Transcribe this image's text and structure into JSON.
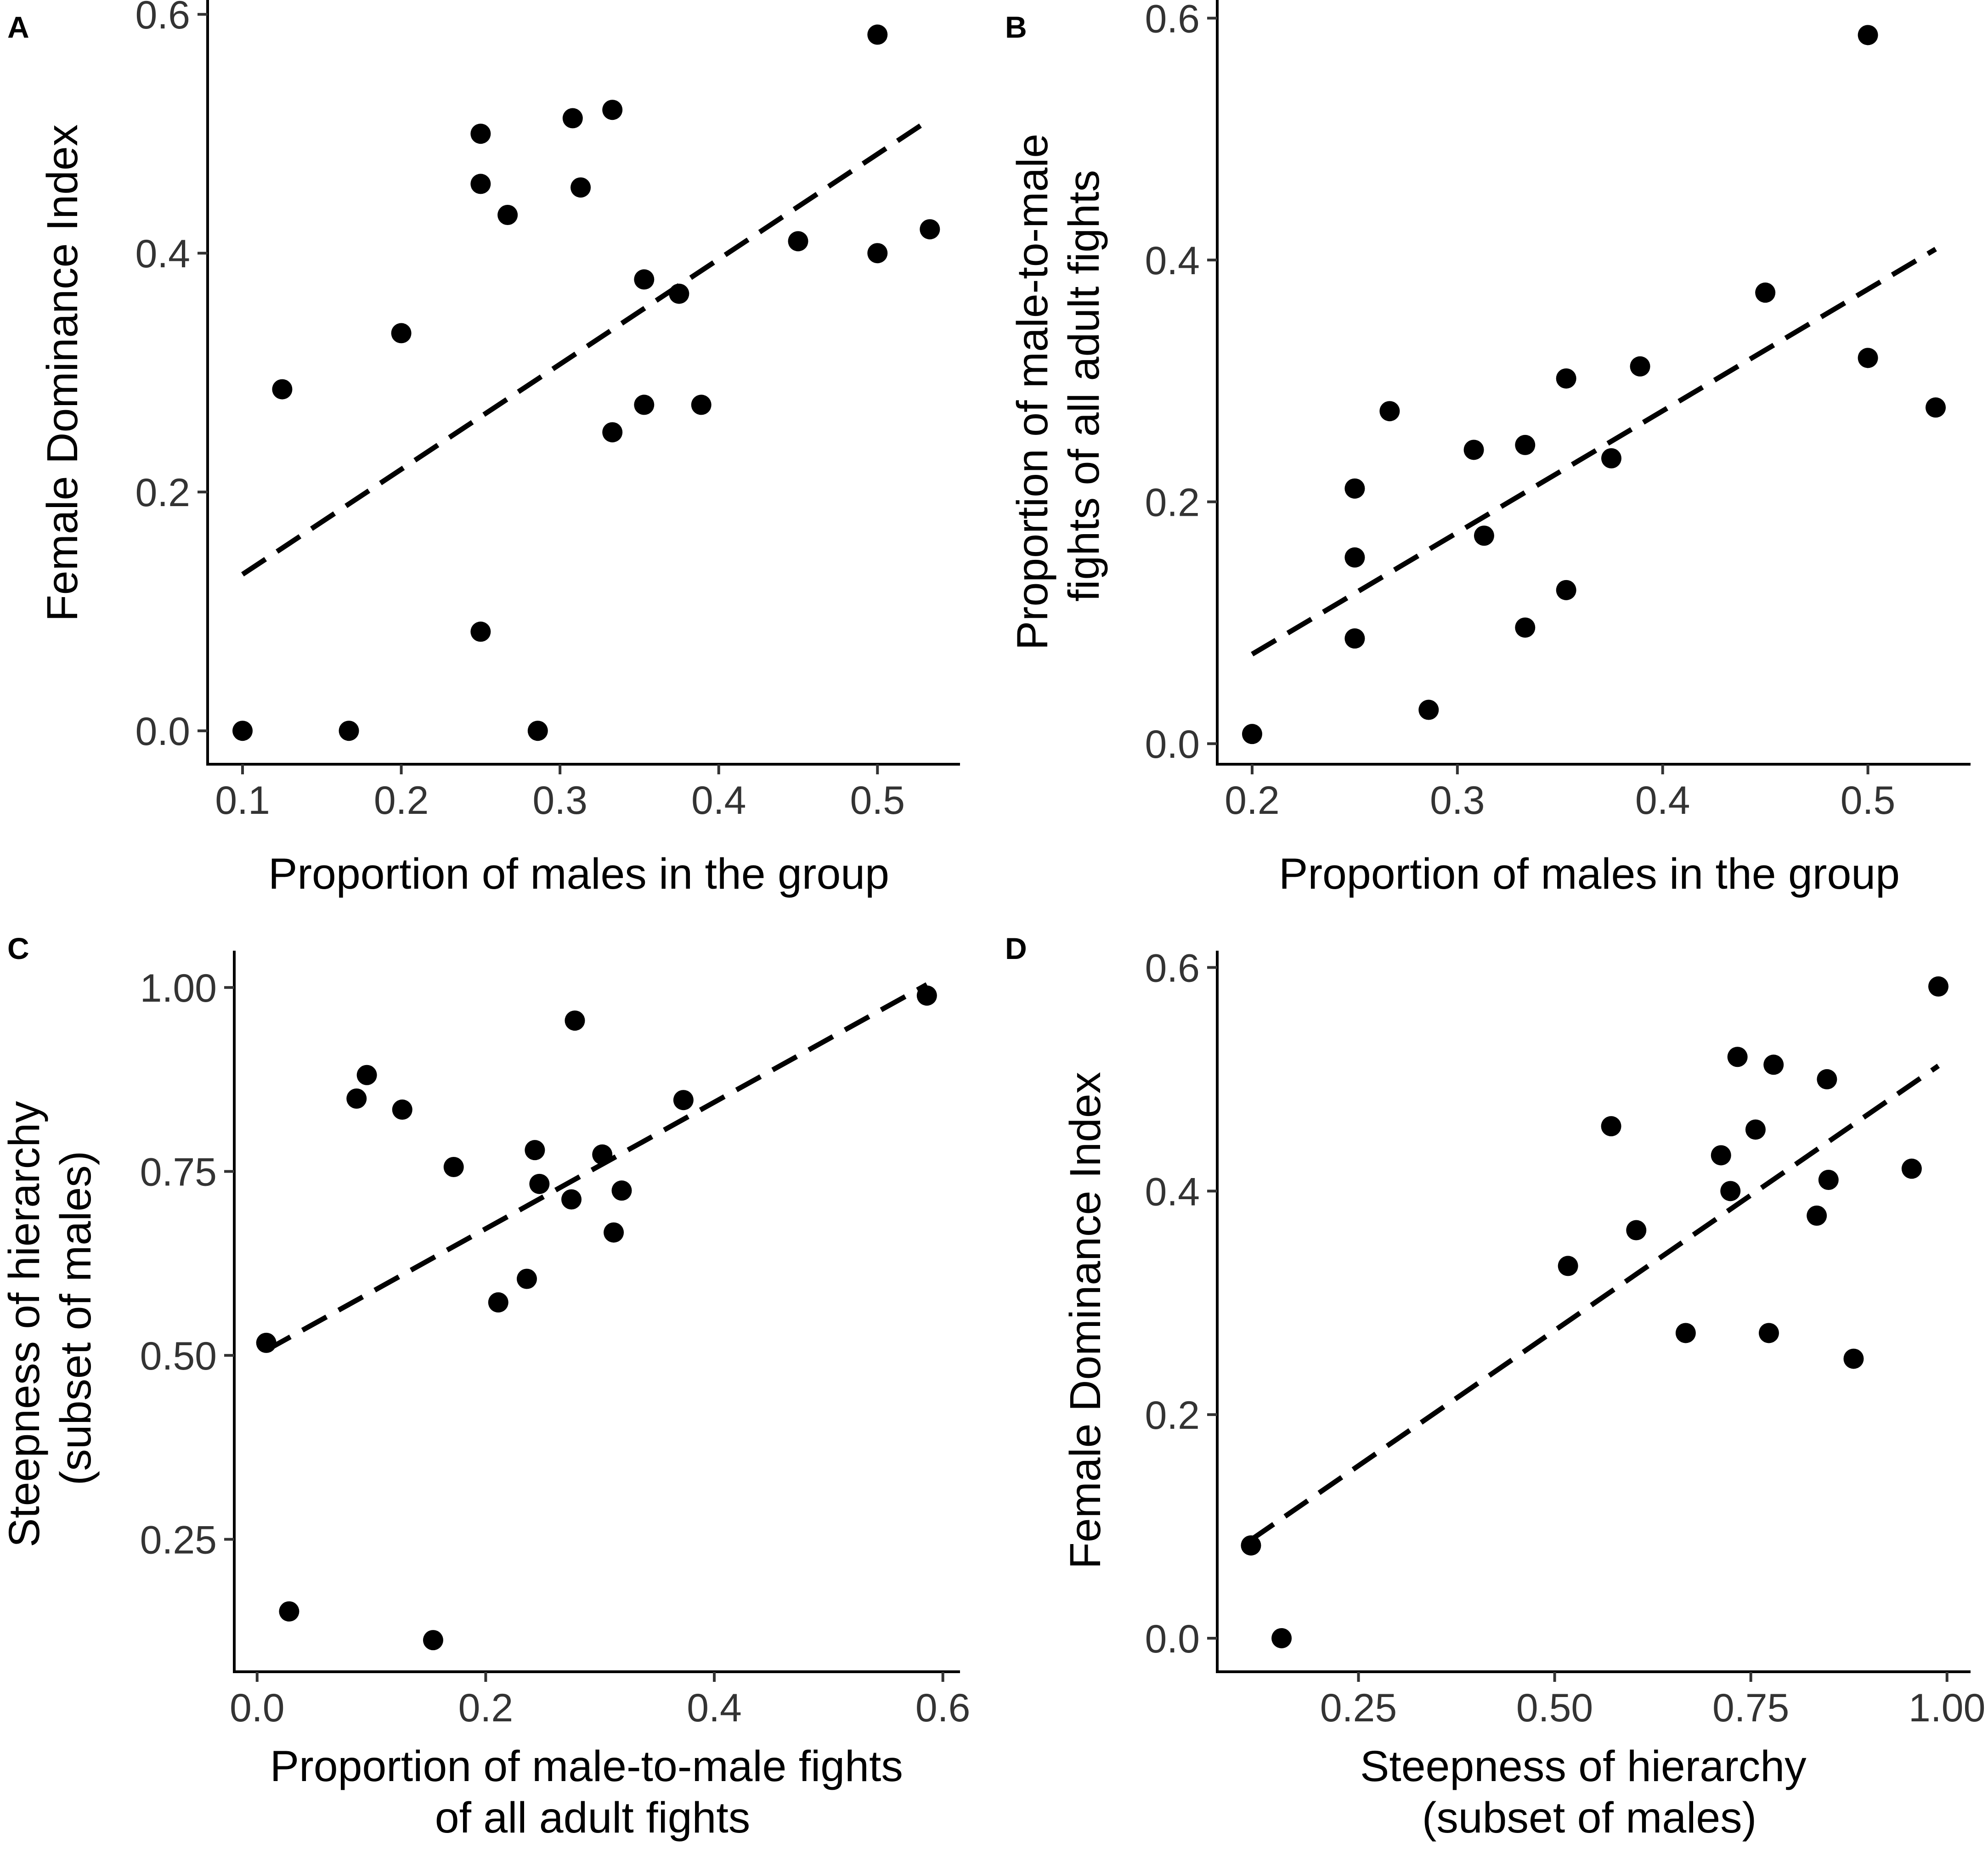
{
  "chart_data": [
    {
      "panel": "A",
      "type": "scatter",
      "xlabel": [
        "Proportion of males in the group"
      ],
      "ylabel": [
        "Female Dominance Index"
      ],
      "xlim": [
        0.078,
        0.552
      ],
      "ylim": [
        -0.028,
        0.612
      ],
      "x_ticks": [
        0.1,
        0.2,
        0.3,
        0.4,
        0.5
      ],
      "x_tick_labels": [
        "0.1",
        "0.2",
        "0.3",
        "0.4",
        "0.5"
      ],
      "y_ticks": [
        0.0,
        0.2,
        0.4,
        0.6
      ],
      "y_tick_labels": [
        "0.0",
        "0.2",
        "0.4",
        "0.6"
      ],
      "points": [
        [
          0.1,
          0.0
        ],
        [
          0.125,
          0.286
        ],
        [
          0.167,
          0.0
        ],
        [
          0.2,
          0.333
        ],
        [
          0.25,
          0.5
        ],
        [
          0.25,
          0.458
        ],
        [
          0.25,
          0.083
        ],
        [
          0.267,
          0.432
        ],
        [
          0.286,
          0.0
        ],
        [
          0.308,
          0.513
        ],
        [
          0.313,
          0.455
        ],
        [
          0.333,
          0.52
        ],
        [
          0.333,
          0.25
        ],
        [
          0.353,
          0.378
        ],
        [
          0.353,
          0.273
        ],
        [
          0.375,
          0.366
        ],
        [
          0.389,
          0.273
        ],
        [
          0.45,
          0.41
        ],
        [
          0.5,
          0.583
        ],
        [
          0.5,
          0.4
        ],
        [
          0.533,
          0.42
        ]
      ],
      "fit_line": [
        [
          0.1,
          0.131
        ],
        [
          0.533,
          0.512
        ]
      ]
    },
    {
      "panel": "B",
      "type": "scatter",
      "xlabel": [
        "Proportion of males in the group"
      ],
      "ylabel": [
        "Proportion of male-to-male",
        "fights of all adult fights"
      ],
      "xlim": [
        0.183,
        0.55
      ],
      "ylim": [
        -0.017,
        0.615
      ],
      "x_ticks": [
        0.2,
        0.3,
        0.4,
        0.5
      ],
      "x_tick_labels": [
        "0.2",
        "0.3",
        "0.4",
        "0.5"
      ],
      "y_ticks": [
        0.0,
        0.2,
        0.4,
        0.6
      ],
      "y_tick_labels": [
        "0.0",
        "0.2",
        "0.4",
        "0.6"
      ],
      "points": [
        [
          0.2,
          0.008
        ],
        [
          0.25,
          0.211
        ],
        [
          0.25,
          0.154
        ],
        [
          0.25,
          0.087
        ],
        [
          0.267,
          0.275
        ],
        [
          0.286,
          0.028
        ],
        [
          0.308,
          0.243
        ],
        [
          0.313,
          0.172
        ],
        [
          0.333,
          0.247
        ],
        [
          0.333,
          0.096
        ],
        [
          0.353,
          0.302
        ],
        [
          0.353,
          0.127
        ],
        [
          0.375,
          0.236
        ],
        [
          0.389,
          0.312
        ],
        [
          0.45,
          0.373
        ],
        [
          0.5,
          0.586
        ],
        [
          0.5,
          0.319
        ],
        [
          0.533,
          0.278
        ]
      ],
      "fit_line": [
        [
          0.2,
          0.074
        ],
        [
          0.533,
          0.409
        ]
      ]
    },
    {
      "panel": "C",
      "type": "scatter",
      "xlabel": [
        "Proportion of male-to-male fights",
        "of all adult fights"
      ],
      "ylabel": [
        "Steepness of hierarchy",
        "(subset of males)"
      ],
      "xlim": [
        -0.02,
        0.615
      ],
      "ylim": [
        0.07,
        1.05
      ],
      "x_ticks": [
        0.0,
        0.2,
        0.4,
        0.6
      ],
      "x_tick_labels": [
        "0.0",
        "0.2",
        "0.4",
        "0.6"
      ],
      "y_ticks": [
        0.25,
        0.5,
        0.75,
        1.0
      ],
      "y_tick_labels": [
        "0.25",
        "0.50",
        "0.75",
        "1.00"
      ],
      "points": [
        [
          0.008,
          0.517
        ],
        [
          0.028,
          0.152
        ],
        [
          0.087,
          0.849
        ],
        [
          0.096,
          0.881
        ],
        [
          0.127,
          0.834
        ],
        [
          0.154,
          0.113
        ],
        [
          0.172,
          0.756
        ],
        [
          0.211,
          0.572
        ],
        [
          0.236,
          0.604
        ],
        [
          0.243,
          0.779
        ],
        [
          0.247,
          0.733
        ],
        [
          0.275,
          0.712
        ],
        [
          0.278,
          0.955
        ],
        [
          0.302,
          0.773
        ],
        [
          0.312,
          0.667
        ],
        [
          0.319,
          0.724
        ],
        [
          0.373,
          0.847
        ],
        [
          0.586,
          0.989
        ]
      ],
      "fit_line": [
        [
          0.008,
          0.507
        ],
        [
          0.586,
          1.004
        ]
      ]
    },
    {
      "panel": "D",
      "type": "scatter",
      "xlabel": [
        "Steepness of hierarchy",
        "(subset of males)"
      ],
      "ylabel": [
        "Female Dominance Index"
      ],
      "xlim": [
        0.07,
        1.03
      ],
      "ylim": [
        -0.03,
        0.615
      ],
      "x_ticks": [
        0.25,
        0.5,
        0.75,
        1.0
      ],
      "x_tick_labels": [
        "0.25",
        "0.50",
        "0.75",
        "1.00"
      ],
      "y_ticks": [
        0.0,
        0.2,
        0.4,
        0.6
      ],
      "y_tick_labels": [
        "0.0",
        "0.2",
        "0.4",
        "0.6"
      ],
      "points": [
        [
          0.113,
          0.083
        ],
        [
          0.152,
          0.0
        ],
        [
          0.517,
          0.333
        ],
        [
          0.572,
          0.458
        ],
        [
          0.604,
          0.365
        ],
        [
          0.667,
          0.273
        ],
        [
          0.712,
          0.432
        ],
        [
          0.724,
          0.4
        ],
        [
          0.733,
          0.52
        ],
        [
          0.756,
          0.455
        ],
        [
          0.773,
          0.273
        ],
        [
          0.779,
          0.513
        ],
        [
          0.834,
          0.378
        ],
        [
          0.847,
          0.5
        ],
        [
          0.849,
          0.41
        ],
        [
          0.881,
          0.25
        ],
        [
          0.955,
          0.42
        ],
        [
          0.989,
          0.583
        ]
      ],
      "fit_line": [
        [
          0.113,
          0.088
        ],
        [
          0.989,
          0.512
        ]
      ]
    }
  ]
}
